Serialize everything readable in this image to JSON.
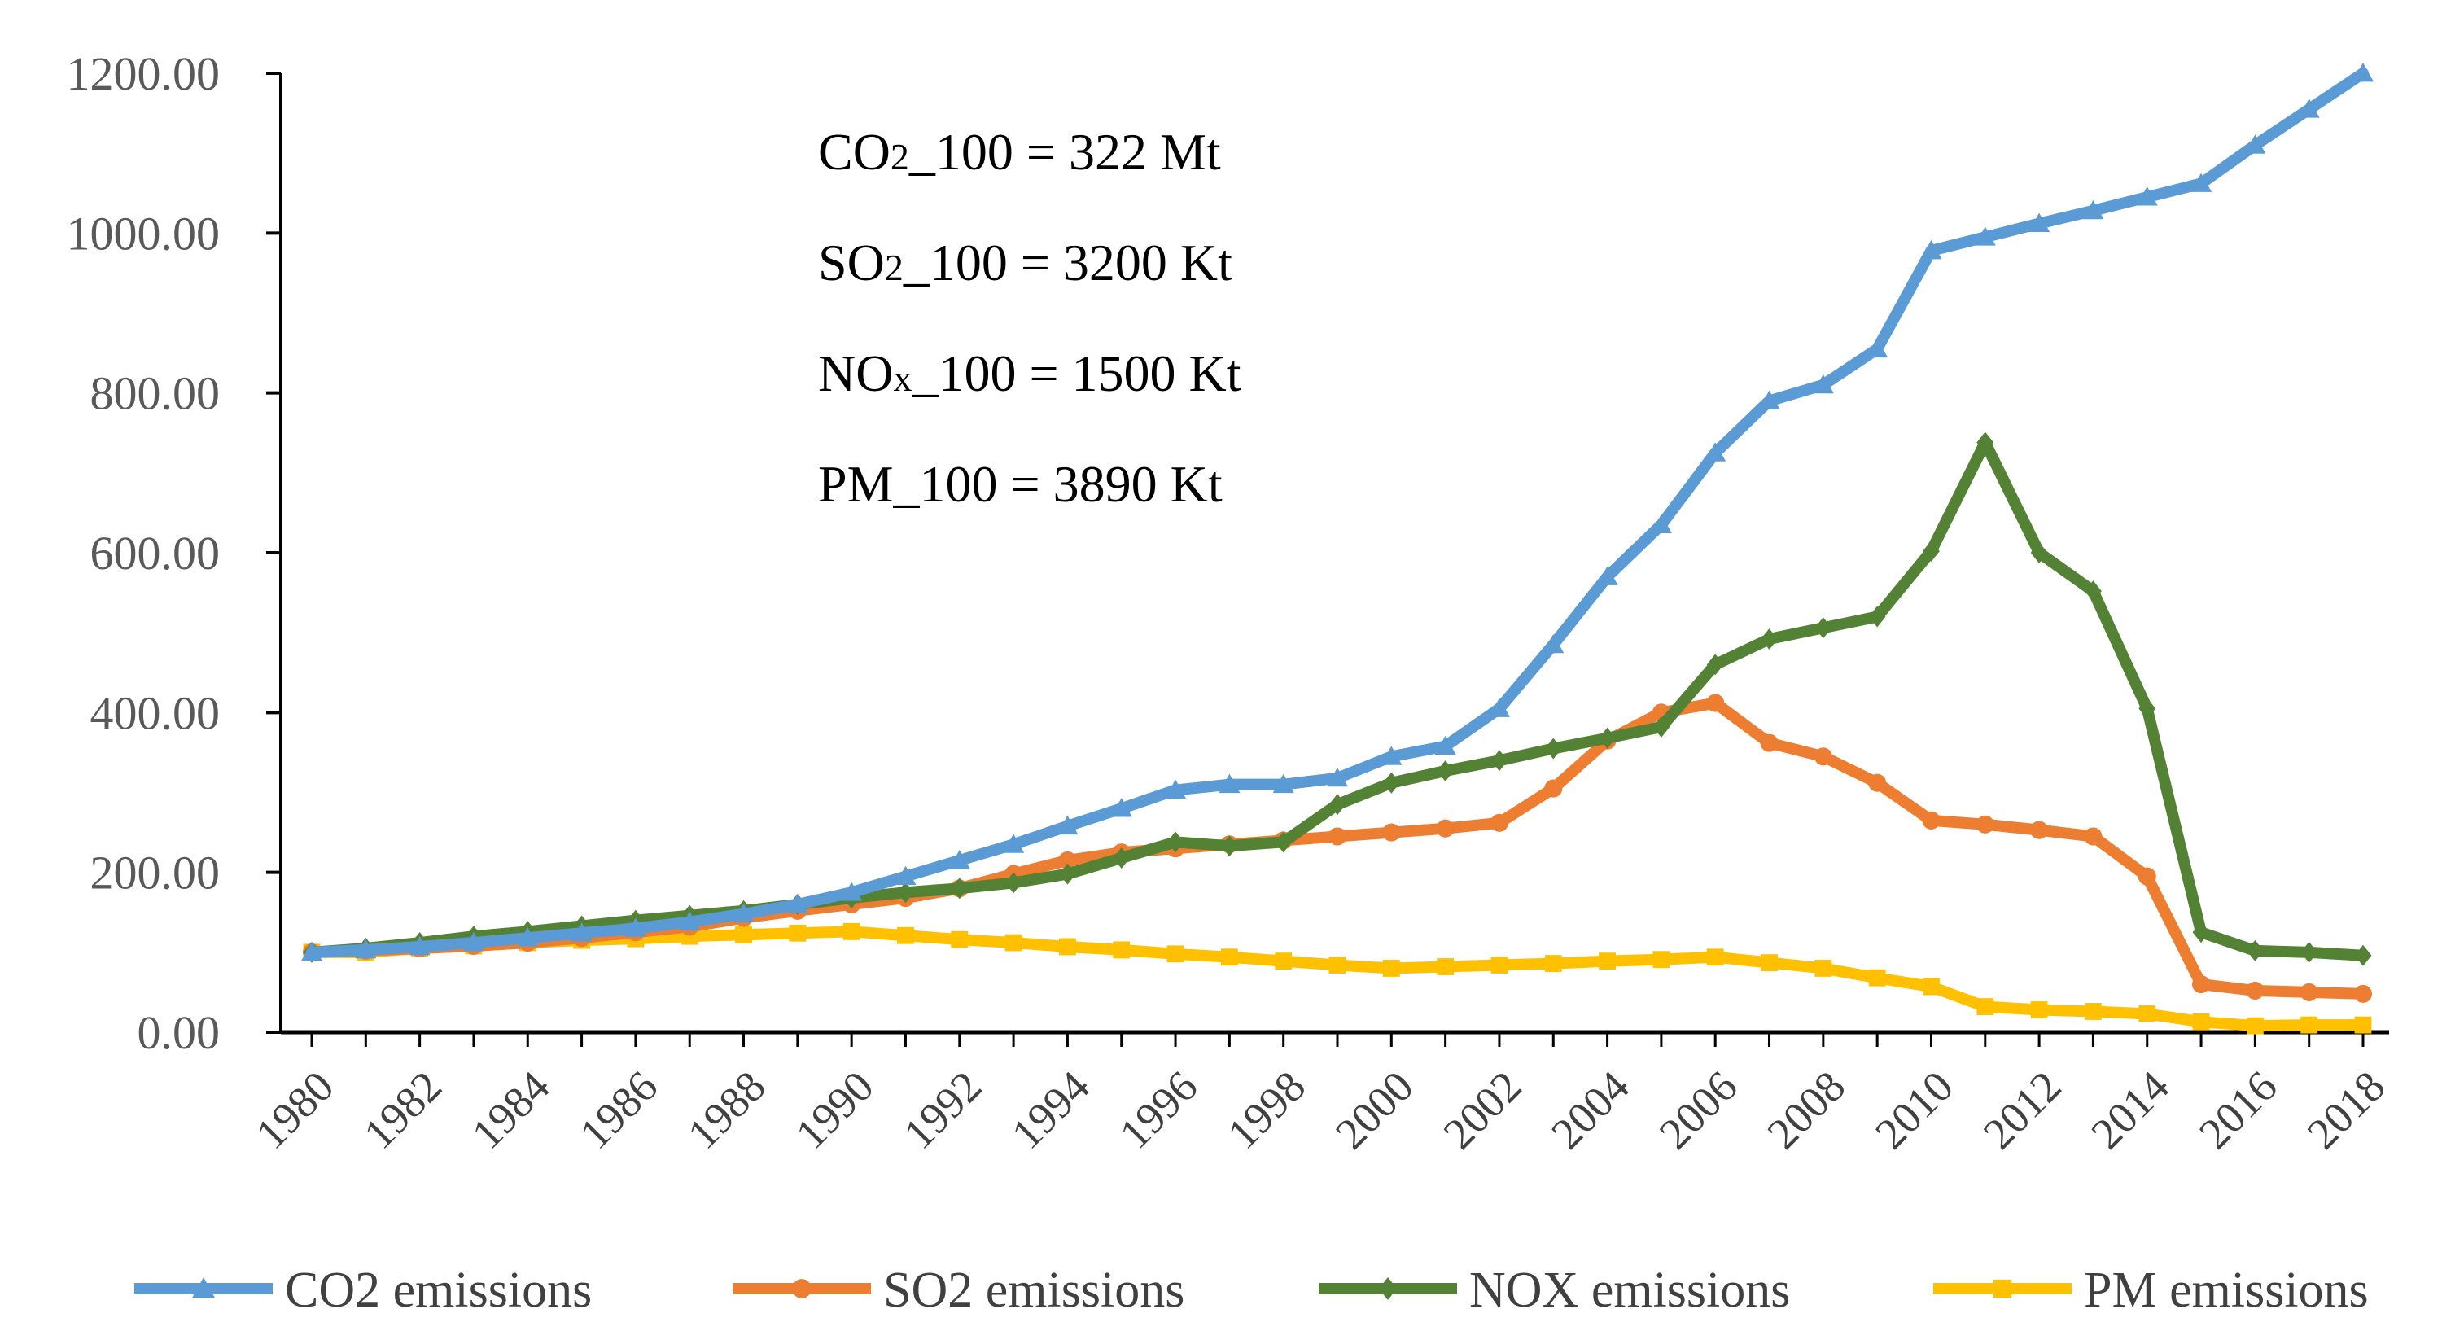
{
  "chart_data": {
    "type": "line",
    "title": "",
    "xlabel": "",
    "ylabel": "",
    "ylim": [
      0,
      1200
    ],
    "y_ticks": [
      "0.00",
      "200.00",
      "400.00",
      "600.00",
      "800.00",
      "1000.00",
      "1200.00"
    ],
    "x_ticks": [
      "1980",
      "1982",
      "1984",
      "1986",
      "1988",
      "1990",
      "1992",
      "1994",
      "1996",
      "1998",
      "2000",
      "2002",
      "2004",
      "2006",
      "2008",
      "2010",
      "2012",
      "2014",
      "2016",
      "2018"
    ],
    "x": [
      1980,
      1981,
      1982,
      1983,
      1984,
      1985,
      1986,
      1987,
      1988,
      1989,
      1990,
      1991,
      1992,
      1993,
      1994,
      1995,
      1996,
      1997,
      1998,
      1999,
      2000,
      2001,
      2002,
      2003,
      2004,
      2005,
      2006,
      2007,
      2008,
      2009,
      2010,
      2011,
      2012,
      2013,
      2014,
      2015,
      2016,
      2017,
      2018
    ],
    "series": [
      {
        "name": "CO2 emissions",
        "color": "#5B9BD5",
        "marker": "triangle",
        "values": [
          100,
          103,
          107,
          112,
          118,
          124,
          130,
          138,
          148,
          160,
          175,
          195,
          215,
          235,
          258,
          280,
          303,
          310,
          310,
          318,
          345,
          358,
          405,
          485,
          570,
          635,
          725,
          790,
          810,
          855,
          978,
          995,
          1012,
          1028,
          1045,
          1062,
          1110,
          1155,
          1200
        ]
      },
      {
        "name": "SO2 emissions",
        "color": "#ED7D31",
        "marker": "circle",
        "values": [
          100,
          102,
          105,
          108,
          112,
          118,
          125,
          132,
          143,
          152,
          160,
          168,
          180,
          198,
          215,
          225,
          230,
          235,
          240,
          245,
          250,
          255,
          262,
          305,
          365,
          400,
          412,
          362,
          345,
          312,
          265,
          260,
          253,
          245,
          195,
          60,
          52,
          50,
          48
        ]
      },
      {
        "name": "NOX emissions",
        "color": "#548235",
        "marker": "diamond",
        "values": [
          100,
          105,
          112,
          120,
          126,
          133,
          140,
          146,
          152,
          160,
          168,
          175,
          180,
          187,
          198,
          218,
          238,
          233,
          238,
          285,
          312,
          327,
          340,
          355,
          368,
          382,
          460,
          492,
          506,
          520,
          602,
          738,
          600,
          552,
          405,
          125,
          102,
          100,
          96
        ]
      },
      {
        "name": "PM emissions",
        "color": "#FFC000",
        "marker": "square",
        "values": [
          100,
          100,
          105,
          108,
          112,
          115,
          117,
          120,
          122,
          124,
          126,
          121,
          116,
          112,
          107,
          103,
          98,
          94,
          89,
          84,
          80,
          82,
          84,
          86,
          89,
          91,
          94,
          87,
          80,
          68,
          57,
          32,
          28,
          26,
          23,
          13,
          8,
          9,
          9
        ]
      }
    ],
    "annotations": [
      {
        "prefix": "CO",
        "sub": "2",
        "rest": "_100 = 322 Mt"
      },
      {
        "prefix": "SO",
        "sub": "2",
        "rest": "_100 = 3200 Kt"
      },
      {
        "prefix": "NO",
        "sub": "x",
        "rest": "_100 = 1500 Kt"
      },
      {
        "prefix": "PM",
        "sub": "",
        "rest": "_100 = 3890 Kt"
      }
    ],
    "legend_position": "bottom"
  }
}
